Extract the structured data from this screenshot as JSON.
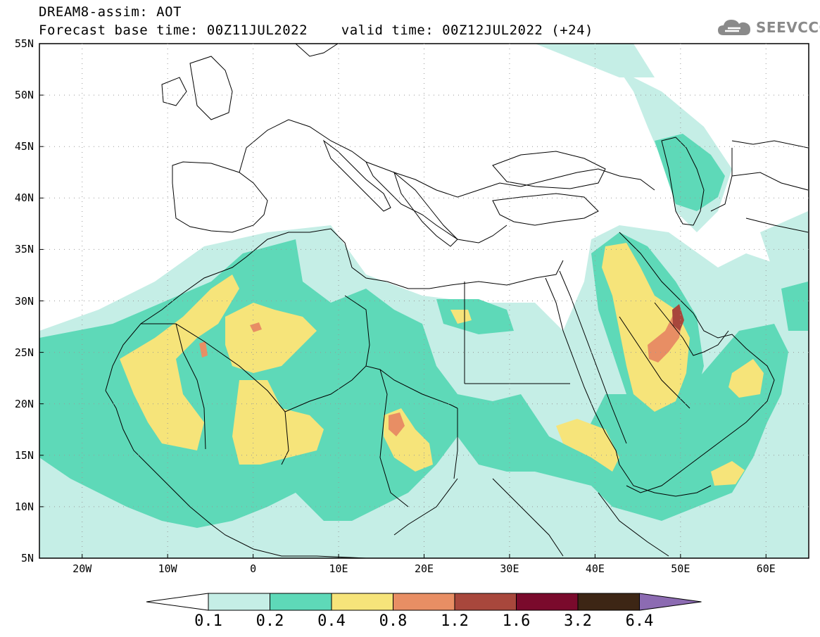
{
  "header": {
    "title_line1": "DREAM8-assim: AOT",
    "title_line2": "Forecast base time: 00Z11JUL2022    valid time: 00Z12JUL2022 (+24)"
  },
  "logo": {
    "text": "SEEVCCC",
    "icon": "cloud-icon",
    "color": "#8a8a8a"
  },
  "map": {
    "lat_labels": [
      "55N",
      "50N",
      "45N",
      "40N",
      "35N",
      "30N",
      "25N",
      "20N",
      "15N",
      "10N",
      "5N"
    ],
    "lon_labels": [
      "20W",
      "10W",
      "0",
      "10E",
      "20E",
      "30E",
      "40E",
      "50E",
      "60E"
    ],
    "lat_range": [
      5,
      55
    ],
    "lon_range": [
      -25,
      65
    ]
  },
  "colorbar": {
    "labels": [
      "0.1",
      "0.2",
      "0.4",
      "0.8",
      "1.2",
      "1.6",
      "3.2",
      "6.4"
    ],
    "colors": [
      "#ffffff",
      "#c5eee6",
      "#5ed9b8",
      "#f6e47a",
      "#e88e64",
      "#a8473c",
      "#7a0a2c",
      "#3d2615",
      "#8c6bb2"
    ]
  }
}
